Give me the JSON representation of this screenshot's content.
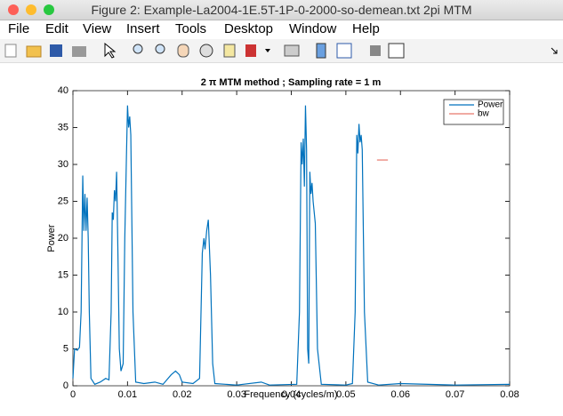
{
  "window": {
    "title": "Figure 2: Example-La2004-1E.5T-1P-0-2000-so-demean.txt 2pi MTM"
  },
  "menu": [
    "File",
    "Edit",
    "View",
    "Insert",
    "Tools",
    "Desktop",
    "Window",
    "Help"
  ],
  "chart_data": {
    "type": "line",
    "title": "2 π MTM method ; Sampling rate = 1 m",
    "x_label": "Frequency (cycles/m)",
    "y_label": "Power",
    "xlim": [
      0,
      0.08
    ],
    "ylim": [
      0,
      40
    ],
    "xticks": [
      0,
      0.01,
      0.02,
      0.03,
      0.04,
      0.05,
      0.06,
      0.07,
      0.08
    ],
    "yticks": [
      0,
      5,
      10,
      15,
      20,
      25,
      30,
      35,
      40
    ],
    "legend": "upper right",
    "series": [
      {
        "name": "Power",
        "color": "#0072bd",
        "x": [
          0,
          0.0003,
          0.0008,
          0.0012,
          0.0015,
          0.0018,
          0.002,
          0.0022,
          0.0024,
          0.0026,
          0.0028,
          0.003,
          0.0033,
          0.004,
          0.005,
          0.006,
          0.0066,
          0.007,
          0.0072,
          0.0074,
          0.0076,
          0.0078,
          0.008,
          0.0082,
          0.0085,
          0.0088,
          0.0092,
          0.0095,
          0.0098,
          0.01,
          0.0102,
          0.0104,
          0.0106,
          0.011,
          0.0115,
          0.013,
          0.015,
          0.0165,
          0.018,
          0.0188,
          0.0195,
          0.02,
          0.022,
          0.0232,
          0.0237,
          0.024,
          0.0242,
          0.0245,
          0.0248,
          0.0252,
          0.0256,
          0.026,
          0.03,
          0.0345,
          0.036,
          0.041,
          0.0415,
          0.0418,
          0.042,
          0.0422,
          0.0424,
          0.0426,
          0.0428,
          0.043,
          0.0432,
          0.0434,
          0.0436,
          0.0438,
          0.044,
          0.0444,
          0.0448,
          0.0455,
          0.05,
          0.0512,
          0.0517,
          0.052,
          0.0522,
          0.0524,
          0.0526,
          0.0528,
          0.053,
          0.0534,
          0.054,
          0.056,
          0.06,
          0.07,
          0.08
        ],
        "values": [
          1,
          5,
          4.8,
          5.2,
          10,
          28.5,
          21,
          26,
          21,
          25.5,
          20,
          10,
          1,
          0.2,
          0.5,
          1,
          0.8,
          10,
          23.5,
          22.5,
          26.5,
          25,
          29,
          20,
          5,
          2,
          3,
          20,
          31,
          38,
          35,
          36.5,
          34,
          10,
          0.5,
          0.3,
          0.5,
          0.2,
          1.5,
          2,
          1.5,
          0.5,
          0.3,
          1,
          18,
          20,
          18.5,
          21,
          22.5,
          15,
          3,
          0.3,
          0.1,
          0.5,
          0.1,
          0.2,
          10,
          33,
          30,
          33.5,
          27,
          38,
          32,
          5,
          3,
          29,
          26,
          27.5,
          25,
          22,
          5,
          0.2,
          0.1,
          0.3,
          10,
          34,
          31.5,
          35.5,
          33,
          34,
          32,
          10,
          0.5,
          0.1,
          0.3,
          0.1,
          0.2
        ]
      },
      {
        "name": "bw",
        "color": "#e8786c",
        "x": [
          0.0557,
          0.0577
        ],
        "values": [
          30.6,
          30.6
        ]
      }
    ]
  }
}
